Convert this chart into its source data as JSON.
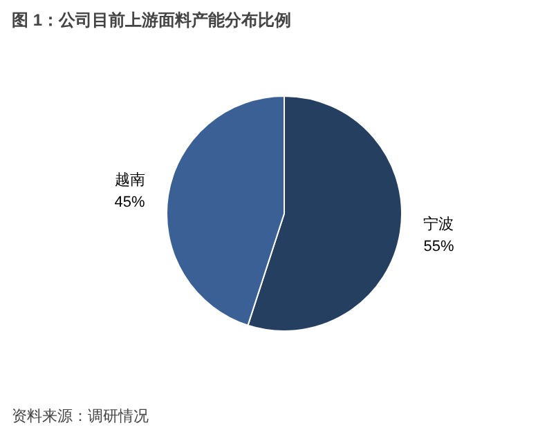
{
  "chart_data": {
    "type": "pie",
    "title": "图 1：公司目前上游面料产能分布比例",
    "categories": [
      "宁波",
      "越南"
    ],
    "values": [
      55,
      45
    ],
    "colors": [
      "#243f60",
      "#3a6096"
    ],
    "value_labels": [
      "55%",
      "45%"
    ],
    "annotations": [
      "资料来源：调研情况"
    ]
  }
}
